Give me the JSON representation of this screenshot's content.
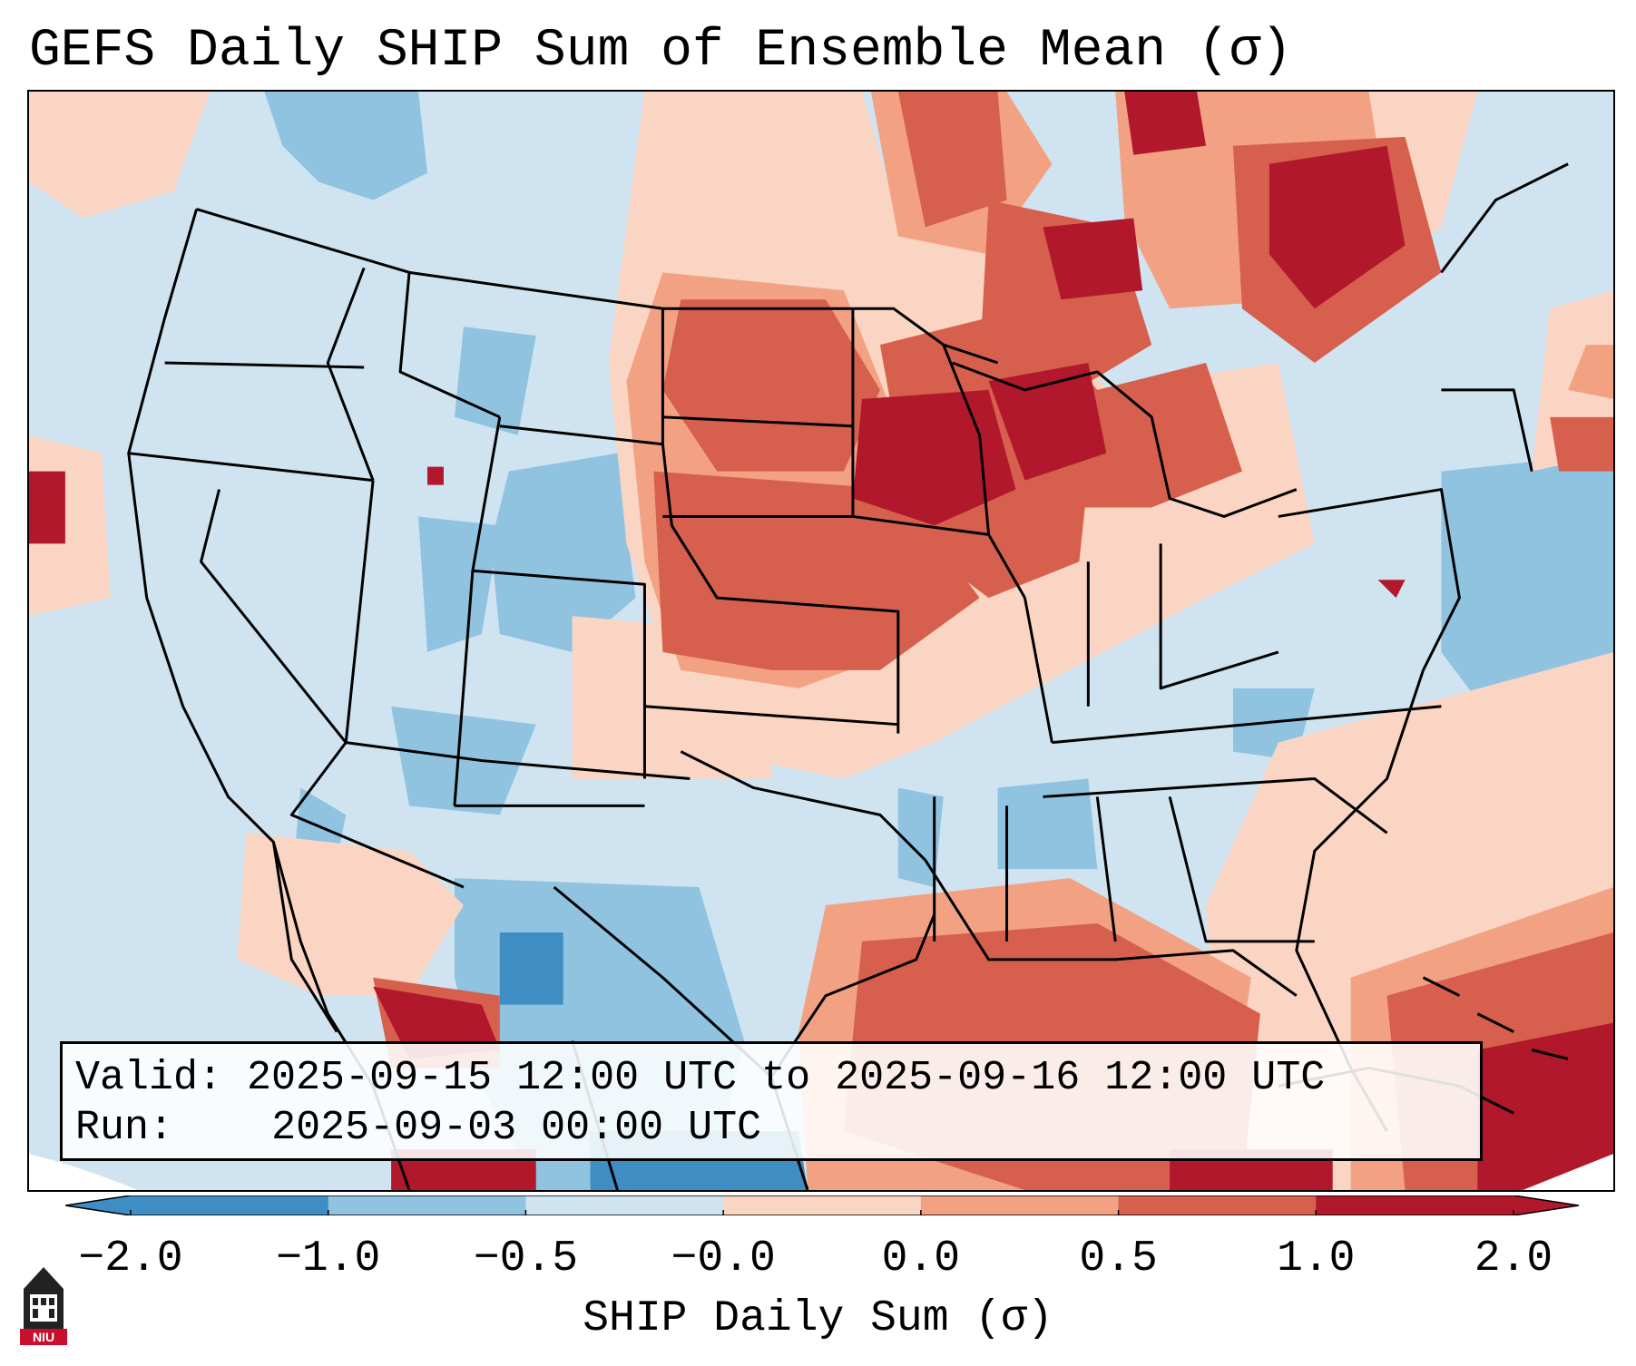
{
  "title": "GEFS Daily SHIP Sum of Ensemble Mean (σ)",
  "info": {
    "valid_label": "Valid:",
    "valid_value": "2025-09-15 12:00 UTC to 2025-09-16 12:00 UTC",
    "run_label": "Run:",
    "run_value": "2025-09-03 00:00 UTC"
  },
  "colorbar": {
    "label": "SHIP Daily Sum (σ)",
    "ticks": [
      "−2.0",
      "−1.0",
      "−0.5",
      "−0.0",
      "0.0",
      "0.5",
      "1.0",
      "2.0"
    ],
    "colors": [
      "#3e8ec4",
      "#8fc3e0",
      "#cfe4f0",
      "#fbd5c4",
      "#f2a283",
      "#d6604d",
      "#b2182b"
    ],
    "extend": "both"
  },
  "map": {
    "region": "Contiguous United States",
    "ocean_fill": "#cfe4f0",
    "anomaly_colors": {
      "strong_negative": "#3e8ec4",
      "negative": "#8fc3e0",
      "near_zero_negative": "#cfe4f0",
      "near_zero_positive": "#fbd5c4",
      "positive": "#f2a283",
      "moderate_positive": "#d6604d",
      "strong_positive": "#b2182b"
    }
  },
  "logo": {
    "text": "NIU"
  }
}
